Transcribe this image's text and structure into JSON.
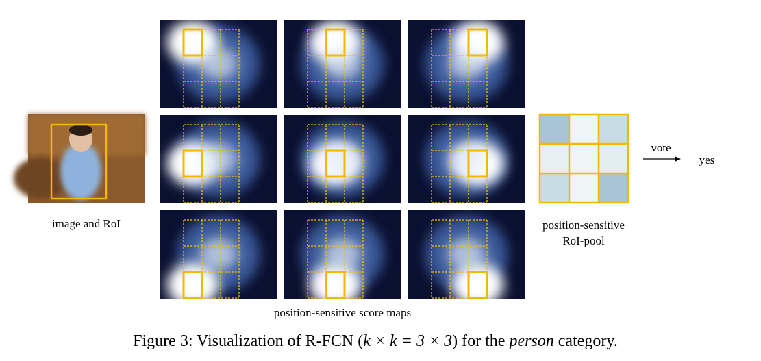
{
  "image_label": "image and RoI",
  "score_maps_label": "position-sensitive score maps",
  "roi_pool_label": [
    "position-sensitive",
    "RoI-pool"
  ],
  "vote_label": "vote",
  "output_label": "yes",
  "caption": {
    "prefix": "Figure 3: Visualization of R-FCN (",
    "math": "k × k = 3 × 3",
    "middle": ") for the ",
    "emph": "person",
    "suffix": " category."
  }
}
